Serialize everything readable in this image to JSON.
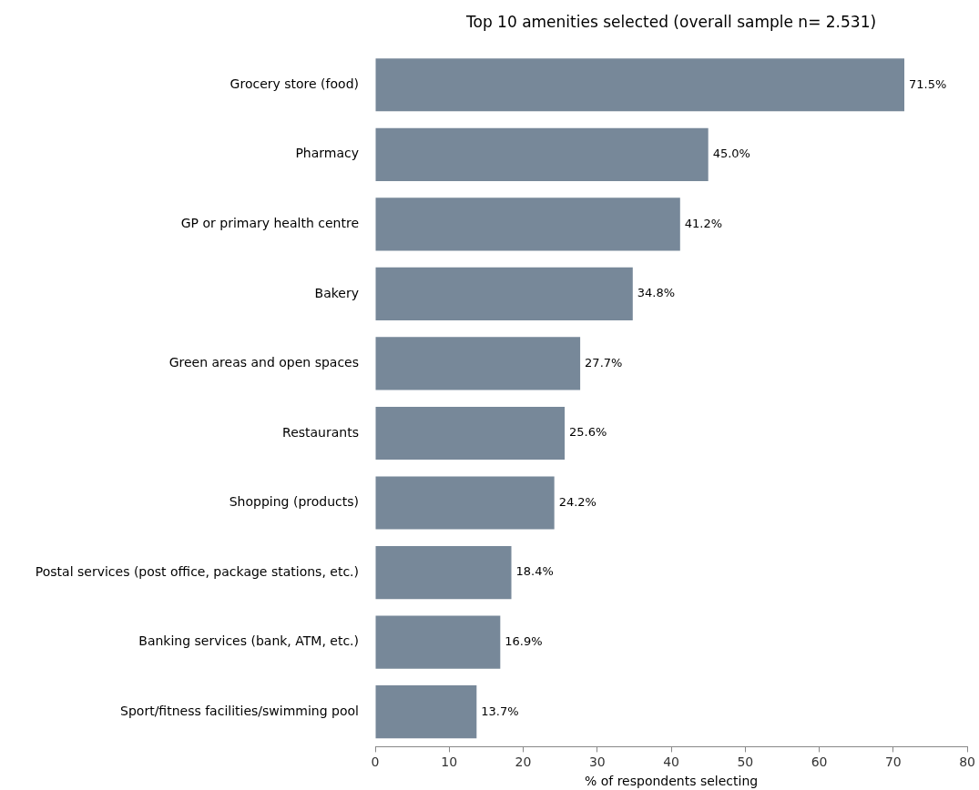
{
  "chart_data": {
    "type": "bar",
    "orientation": "horizontal",
    "title": "Top 10 amenities selected (overall sample n= 2.531)",
    "xlabel": "% of respondents selecting",
    "categories": [
      "Grocery store (food)",
      "Pharmacy",
      "GP or primary health centre",
      "Bakery",
      "Green areas and open spaces",
      "Restaurants",
      "Shopping (products)",
      "Postal services (post office, package stations, etc.)",
      "Banking services (bank, ATM, etc.)",
      "Sport/fitness facilities/swimming pool"
    ],
    "values": [
      71.5,
      45.0,
      41.2,
      34.8,
      27.7,
      25.6,
      24.2,
      18.4,
      16.9,
      13.7
    ],
    "value_labels": [
      "71.5%",
      "45.0%",
      "41.2%",
      "34.8%",
      "27.7%",
      "25.6%",
      "24.2%",
      "18.4%",
      "16.9%",
      "13.7%"
    ],
    "color": "#778899",
    "xlim": [
      0,
      80
    ],
    "xticks": [
      0,
      10,
      20,
      30,
      40,
      50,
      60,
      70,
      80
    ],
    "grid": false,
    "legend": false
  }
}
